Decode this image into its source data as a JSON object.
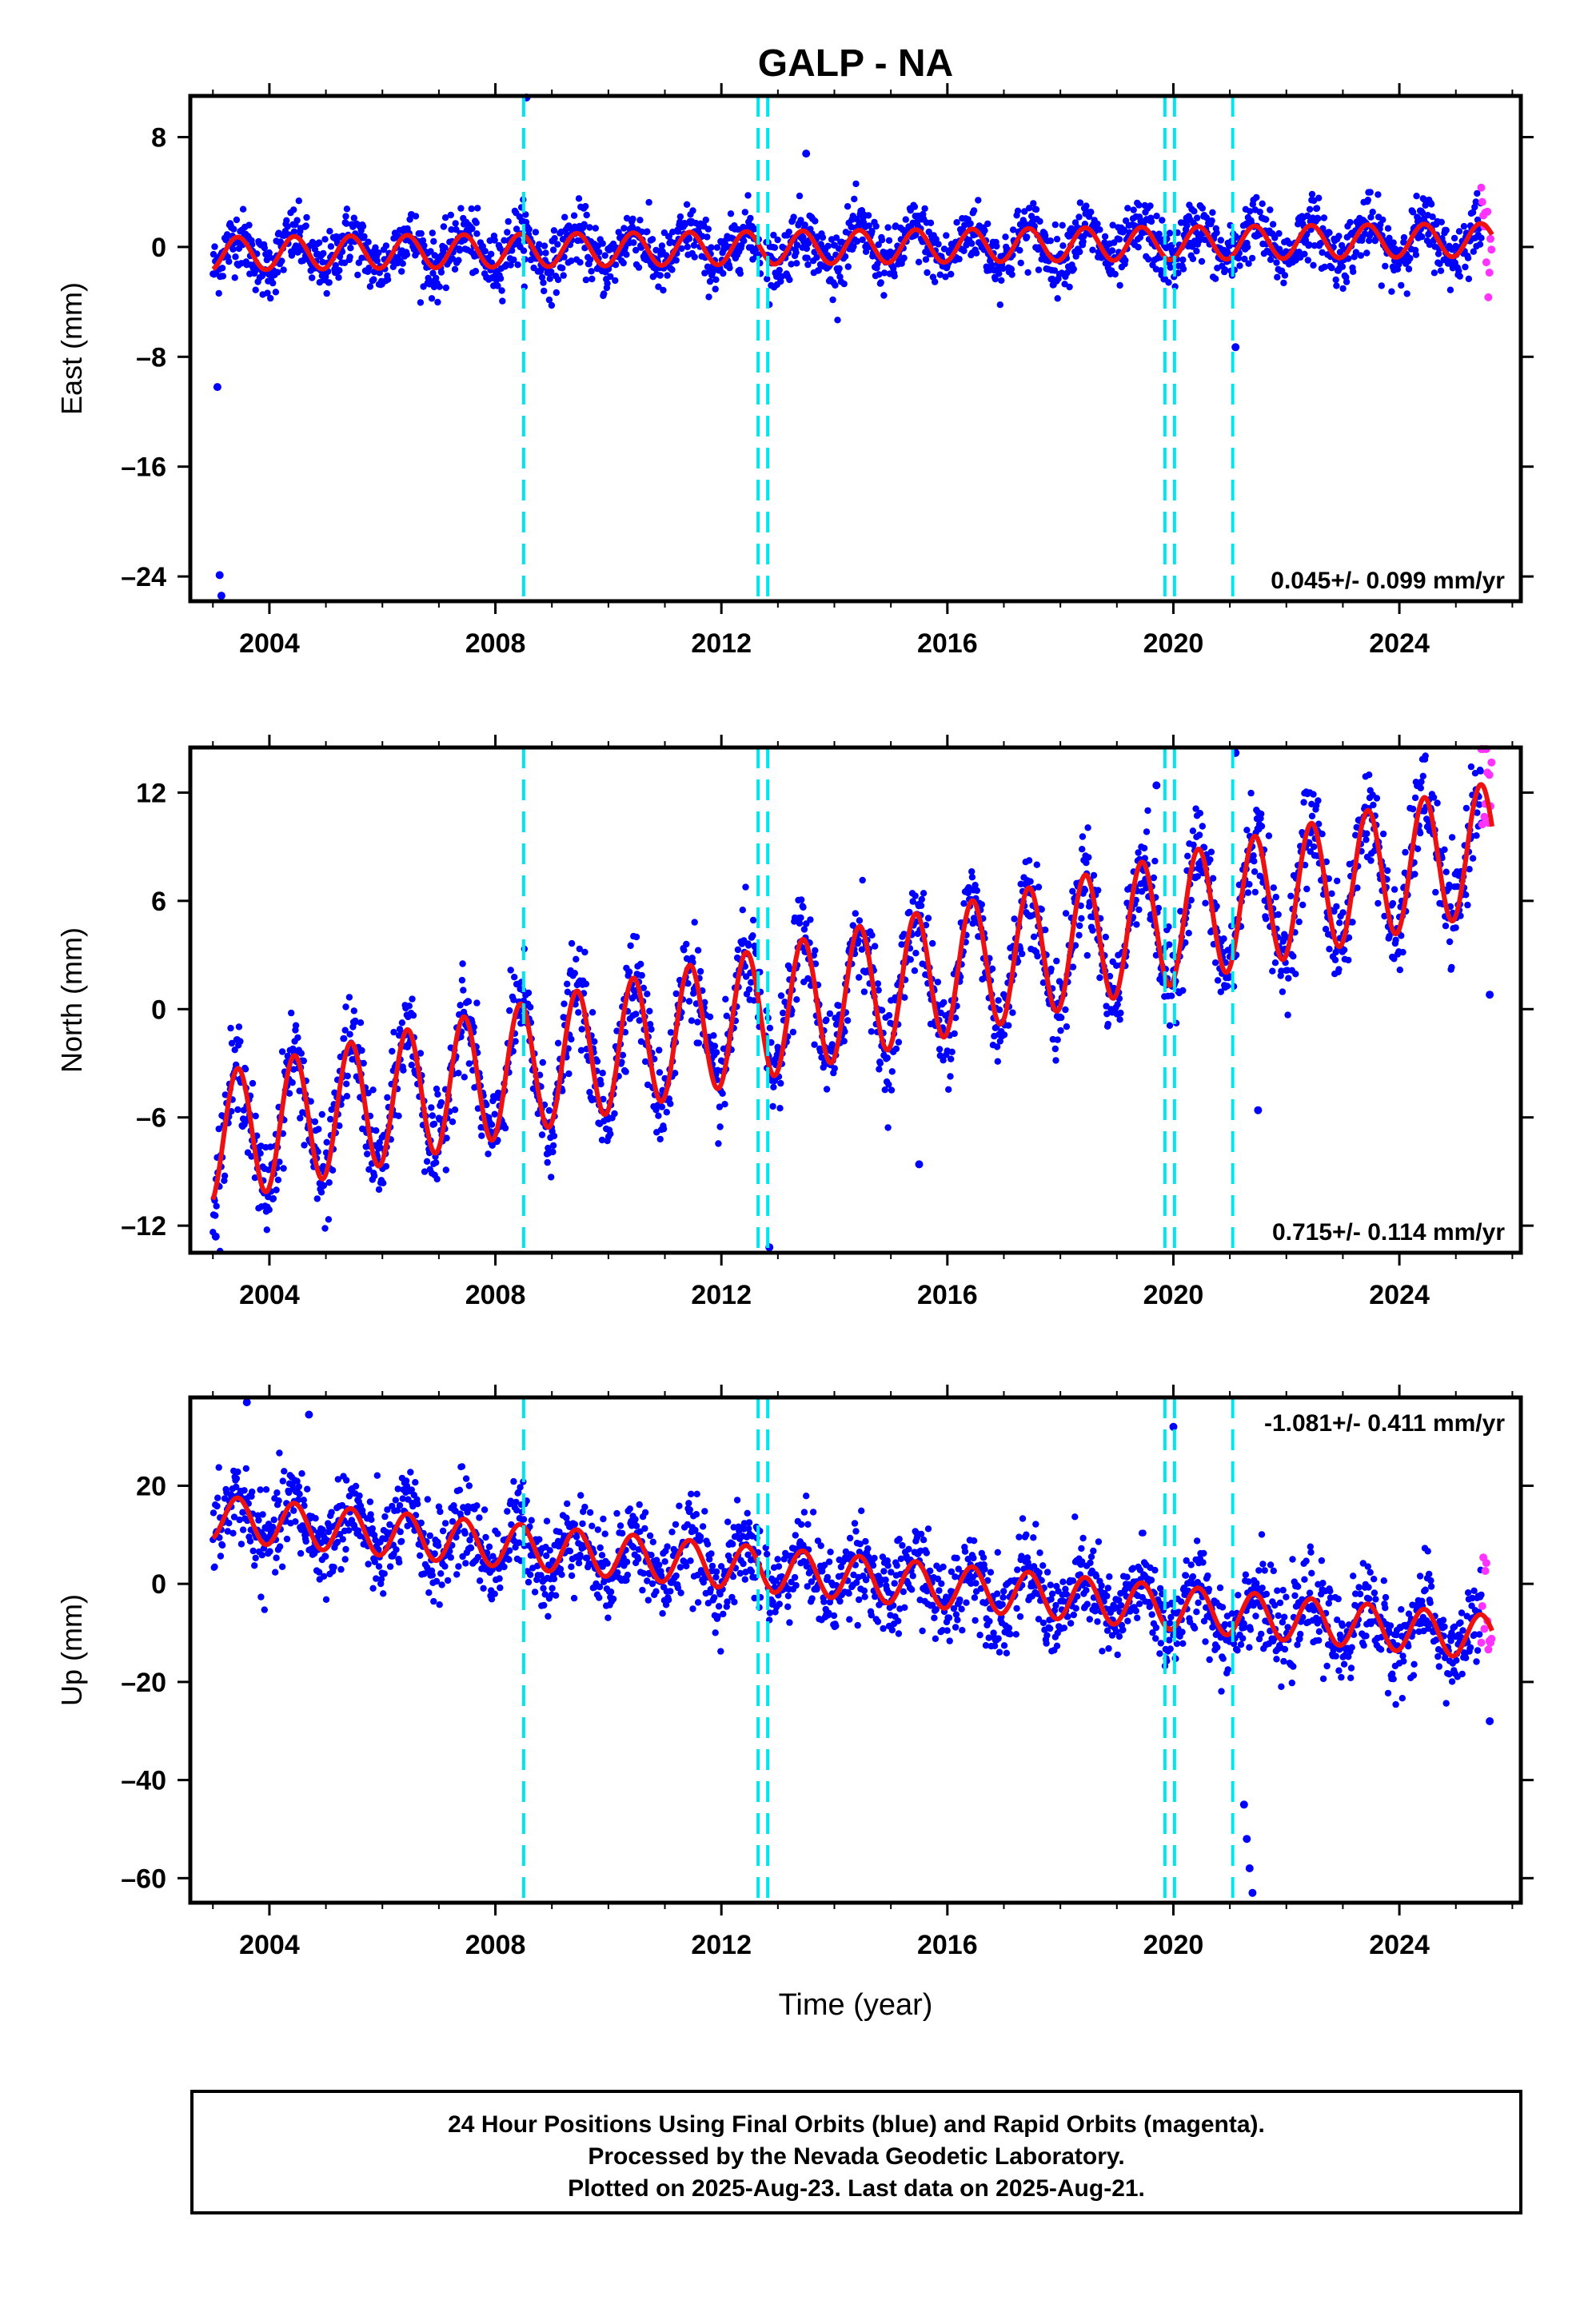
{
  "chart_data": {
    "type": "scatter",
    "title": "GALP - NA",
    "xlabel": "Time (year)",
    "xlim": [
      2002.6,
      2026.15
    ],
    "x_ticks": [
      2004,
      2008,
      2012,
      2016,
      2020,
      2024
    ],
    "x_tick_labels": [
      "2004",
      "2008",
      "2012",
      "2016",
      "2020",
      "2024"
    ],
    "series_legend": [
      {
        "name": "Final Orbits",
        "color": "#0000ff"
      },
      {
        "name": "Rapid Orbits",
        "color": "#ff00ff"
      },
      {
        "name": "Model fit",
        "color": "#ff0000"
      }
    ],
    "colors": {
      "final": "#0000ff",
      "rapid": "#ff33ff",
      "model": "#ee1111",
      "offsets": "#00e5ee",
      "frame": "#000000"
    },
    "offset_epochs": [
      2008.5,
      2012.65,
      2012.82,
      2019.85,
      2020.02,
      2021.05
    ],
    "data_start": 2003.0,
    "data_end": 2025.64,
    "rapid_start": 2025.45,
    "panels": [
      {
        "name": "east",
        "ylabel": "East (mm)",
        "ylim": [
          -25.8,
          11.0
        ],
        "y_ticks": [
          8,
          0,
          -8,
          -16,
          -24
        ],
        "y_tick_labels": [
          "8",
          "0",
          "–8",
          "–16",
          "–24"
        ],
        "rate_label": "0.045+/- 0.099 mm/yr",
        "rate_position": "bottom-right",
        "trend_intercept": -0.5,
        "trend_slope": 0.045,
        "seasonal_amplitude": 1.2,
        "noise": 1.1,
        "outliers": [
          {
            "x": 2003.08,
            "y": -10.2
          },
          {
            "x": 2003.12,
            "y": -23.9
          },
          {
            "x": 2003.15,
            "y": -25.4
          },
          {
            "x": 2008.55,
            "y": 11.0
          },
          {
            "x": 2013.5,
            "y": 6.8
          },
          {
            "x": 2021.1,
            "y": -7.3
          }
        ]
      },
      {
        "name": "north",
        "ylabel": "North (mm)",
        "ylim": [
          -13.5,
          14.5
        ],
        "y_ticks": [
          12,
          6,
          0,
          -6,
          -12
        ],
        "y_tick_labels": [
          "12",
          "6",
          "0",
          "–6",
          "–12"
        ],
        "rate_label": "0.715+/- 0.114 mm/yr",
        "rate_position": "bottom-right",
        "trend_intercept": -7.2,
        "trend_slope": 0.715,
        "seasonal_amplitude": 3.6,
        "noise": 1.3,
        "outliers": [
          {
            "x": 2003.05,
            "y": -12.6
          },
          {
            "x": 2012.85,
            "y": -13.2
          },
          {
            "x": 2015.5,
            "y": -8.6
          },
          {
            "x": 2019.7,
            "y": 12.4
          },
          {
            "x": 2021.1,
            "y": 14.2
          },
          {
            "x": 2021.5,
            "y": -5.6
          },
          {
            "x": 2025.6,
            "y": 0.8
          }
        ]
      },
      {
        "name": "up",
        "ylabel": "Up (mm)",
        "ylim": [
          -65.0,
          38.0
        ],
        "y_ticks": [
          20,
          0,
          -20,
          -40,
          -60
        ],
        "y_tick_labels": [
          "20",
          "0",
          "–20",
          "–40",
          "–60"
        ],
        "rate_label": "-1.081+/- 0.411 mm/yr",
        "rate_position": "top-right",
        "trend_intercept": 13.5,
        "trend_slope": -1.081,
        "seasonal_amplitude": 4.5,
        "noise": 4.5,
        "outliers": [
          {
            "x": 2003.6,
            "y": 37.0
          },
          {
            "x": 2004.7,
            "y": 34.5
          },
          {
            "x": 2020.0,
            "y": 32.0
          },
          {
            "x": 2021.25,
            "y": -45.0
          },
          {
            "x": 2021.3,
            "y": -52.0
          },
          {
            "x": 2021.35,
            "y": -58.0
          },
          {
            "x": 2021.4,
            "y": -63.0
          },
          {
            "x": 2025.6,
            "y": -28.0
          }
        ]
      }
    ],
    "footer_lines": [
      "24 Hour Positions Using Final Orbits (blue) and Rapid Orbits (magenta).",
      "Processed by the Nevada Geodetic Laboratory.",
      "Plotted on 2025-Aug-23. Last data on 2025-Aug-21."
    ]
  }
}
